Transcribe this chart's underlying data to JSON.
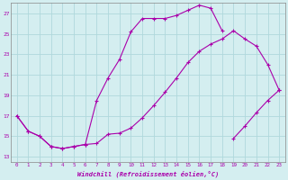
{
  "xlabel": "Windchill (Refroidissement éolien,°C)",
  "bg_color": "#d4eef0",
  "grid_color": "#b0d8dc",
  "line_color": "#aa00aa",
  "xlim": [
    -0.5,
    23.5
  ],
  "ylim": [
    12.5,
    28.0
  ],
  "yticks": [
    13,
    15,
    17,
    19,
    21,
    23,
    25,
    27
  ],
  "xticks": [
    0,
    1,
    2,
    3,
    4,
    5,
    6,
    7,
    8,
    9,
    10,
    11,
    12,
    13,
    14,
    15,
    16,
    17,
    18,
    19,
    20,
    21,
    22,
    23
  ],
  "line1_x": [
    0,
    1,
    2,
    3,
    4,
    5,
    6,
    7,
    8,
    9,
    10,
    11,
    12,
    13,
    14,
    15,
    16,
    17,
    18,
    19,
    20,
    21,
    22,
    23
  ],
  "line1_y": [
    17.0,
    15.5,
    15.0,
    14.0,
    13.8,
    14.0,
    14.2,
    14.3,
    15.2,
    15.3,
    15.8,
    16.8,
    18.0,
    19.3,
    20.7,
    22.2,
    23.3,
    24.0,
    24.5,
    25.3,
    24.5,
    23.8,
    22.0,
    19.5
  ],
  "line2_x": [
    0,
    1,
    2,
    3,
    4,
    5,
    6,
    7,
    8,
    9,
    10,
    11,
    12,
    13,
    14,
    15,
    16,
    17,
    18,
    19,
    20,
    21,
    22,
    23
  ],
  "line2_y": [
    17.0,
    15.5,
    15.0,
    14.0,
    13.8,
    14.0,
    14.2,
    18.5,
    20.7,
    22.5,
    25.2,
    26.5,
    26.5,
    26.5,
    26.8,
    27.3,
    27.8,
    27.5,
    25.3,
    null,
    null,
    null,
    null,
    null
  ],
  "line3_x": [
    0,
    1,
    2,
    3,
    4,
    5,
    6,
    7,
    8,
    9,
    10,
    11,
    12,
    13,
    14,
    15,
    16,
    17,
    18,
    19,
    20,
    21,
    22,
    23
  ],
  "line3_y": [
    null,
    null,
    null,
    null,
    null,
    null,
    null,
    null,
    null,
    null,
    null,
    null,
    null,
    null,
    null,
    null,
    null,
    null,
    null,
    14.8,
    16.0,
    17.3,
    18.5,
    19.5
  ]
}
